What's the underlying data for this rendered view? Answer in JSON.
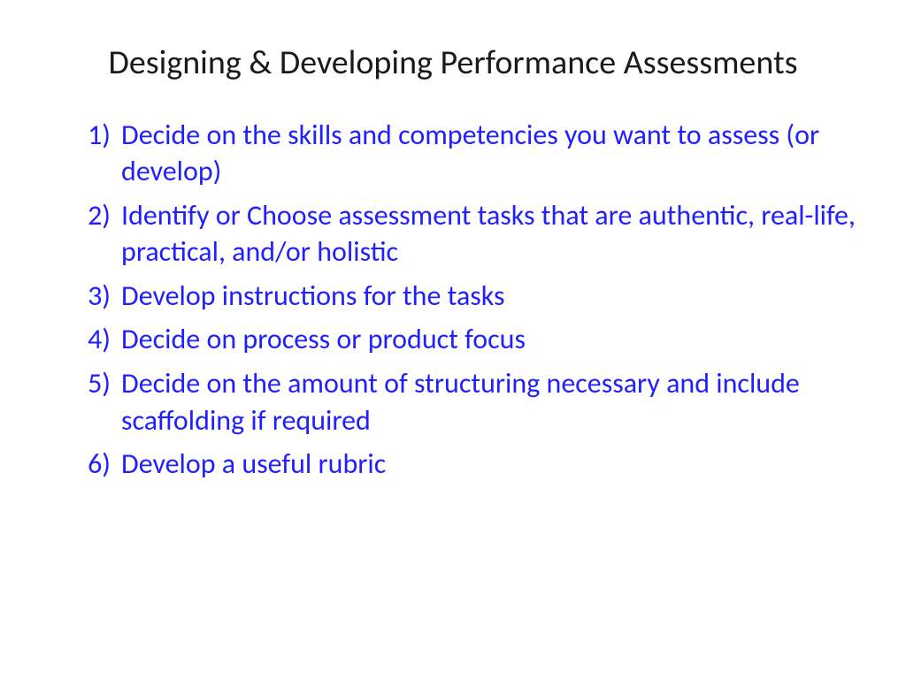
{
  "slide": {
    "title": "Designing & Developing Performance Assessments",
    "title_color": "#1a1a1a",
    "title_fontsize": 38,
    "background_color": "#ffffff",
    "list_color": "#1f1fff",
    "list_fontsize": 32,
    "list_type": "numbered-paren",
    "items": [
      "Decide on the skills and competencies you want to assess (or develop)",
      "Identify or Choose assessment tasks that are authentic, real-life, practical, and/or holistic",
      "Develop instructions for the tasks",
      "Decide on process or product focus",
      "Decide on the amount of structuring necessary and include scaffolding if required",
      "Develop a useful rubric"
    ]
  }
}
